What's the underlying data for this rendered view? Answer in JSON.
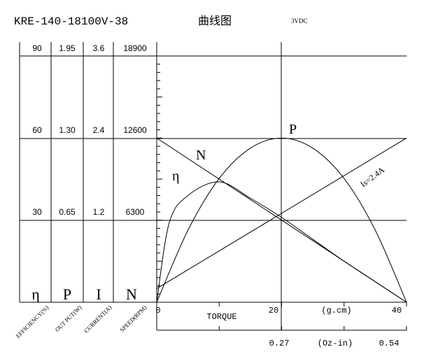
{
  "header": {
    "model": "KRE-140-18100V-38",
    "chart_title": "曲线图",
    "voltage": "3VDC"
  },
  "columns": [
    {
      "symbol": "η",
      "label": "EFFICIENCY(%)",
      "ticks": [
        "30",
        "60",
        "90"
      ]
    },
    {
      "symbol": "P",
      "label": "OUT PUT(W)",
      "ticks": [
        "0.65",
        "1.30",
        "1.95"
      ]
    },
    {
      "symbol": "I",
      "label": "CURRENT(A)",
      "ticks": [
        "1.2",
        "2.4",
        "3.6"
      ]
    },
    {
      "symbol": "N",
      "label": "SPEED(RPM)",
      "ticks": [
        "6300",
        "12600",
        "18900"
      ]
    }
  ],
  "x_axis": {
    "label": "TORQUE",
    "unit": "(g.cm)",
    "ticks": [
      "0",
      "20",
      "40"
    ],
    "oz_unit": "(Oz-in)",
    "oz_ticks": [
      "0.27",
      "0.54"
    ]
  },
  "curve_labels": {
    "P": "P",
    "N": "N",
    "eta": "η",
    "Is": "Is=2.4A"
  },
  "chart_data": {
    "type": "line",
    "xlabel": "TORQUE (g.cm)",
    "xlim": [
      0,
      40
    ],
    "grid": true,
    "series": [
      {
        "name": "N",
        "unit": "RPM",
        "x": [
          0,
          40
        ],
        "y": [
          12600,
          0
        ]
      },
      {
        "name": "I",
        "unit": "A",
        "x": [
          0,
          40
        ],
        "y": [
          0.2,
          2.4
        ]
      },
      {
        "name": "P",
        "unit": "W",
        "x": [
          0,
          5,
          10,
          15,
          20,
          25,
          30,
          35,
          40
        ],
        "y": [
          0,
          0.57,
          0.98,
          1.22,
          1.3,
          1.22,
          0.98,
          0.57,
          0
        ]
      },
      {
        "name": "η",
        "unit": "%",
        "x": [
          0,
          2,
          5,
          10,
          15,
          20,
          25,
          30,
          35,
          40
        ],
        "y": [
          0,
          29,
          39,
          44,
          38,
          31,
          23,
          15,
          7.5,
          0
        ]
      }
    ]
  }
}
